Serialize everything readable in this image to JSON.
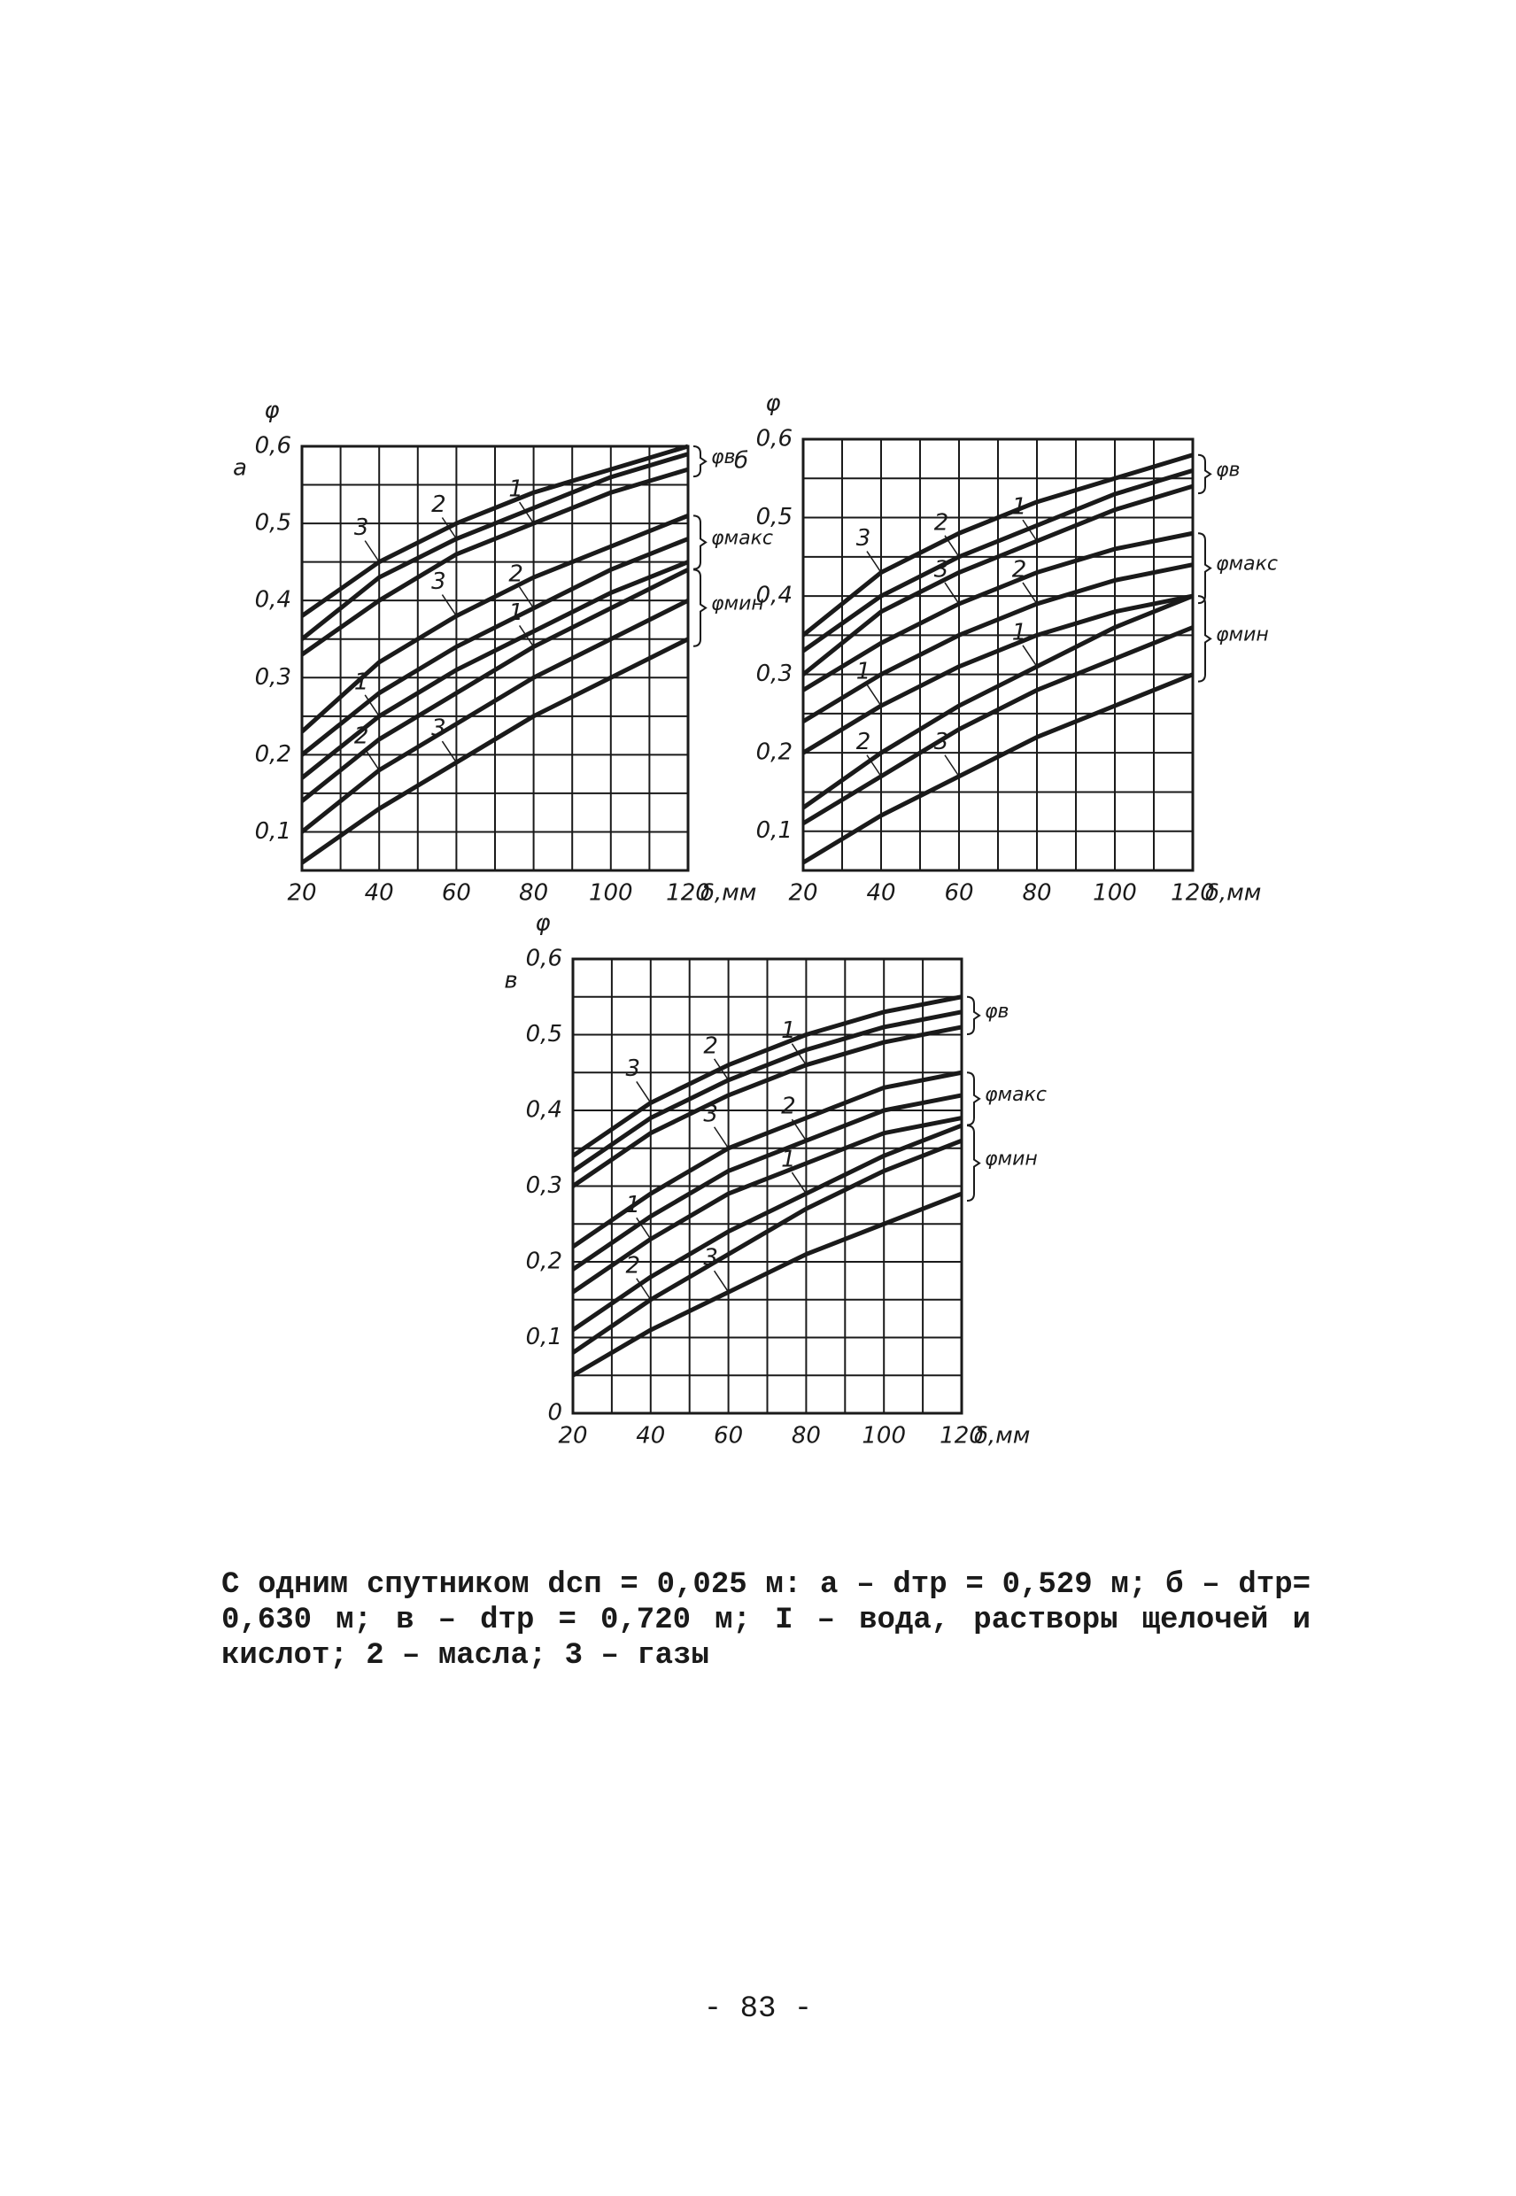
{
  "chart_data": [
    {
      "type": "line",
      "panel": "а",
      "ylabel": "φ",
      "xlabel": "δ,мм",
      "color": "#1a1a1a",
      "grid": true,
      "x": [
        20,
        40,
        60,
        80,
        100,
        120
      ],
      "xlim": [
        20,
        120
      ],
      "xticks": [
        20,
        40,
        60,
        80,
        100,
        120
      ],
      "ylim": [
        0.05,
        0.6
      ],
      "yticks": [
        {
          "value": 0.1,
          "label": "0,1"
        },
        {
          "value": 0.2,
          "label": "0,2"
        },
        {
          "value": 0.3,
          "label": "0,3"
        },
        {
          "value": 0.4,
          "label": "0,4"
        },
        {
          "value": 0.5,
          "label": "0,5"
        },
        {
          "value": 0.6,
          "label": "0,6"
        }
      ],
      "groups": [
        {
          "name": "φв",
          "series": [
            {
              "name": "3",
              "values": [
                0.38,
                0.45,
                0.5,
                0.54,
                0.57,
                0.6
              ]
            },
            {
              "name": "2",
              "values": [
                0.35,
                0.43,
                0.48,
                0.52,
                0.56,
                0.59
              ]
            },
            {
              "name": "1",
              "values": [
                0.33,
                0.4,
                0.46,
                0.5,
                0.54,
                0.57
              ]
            }
          ]
        },
        {
          "name": "φмакс",
          "series": [
            {
              "name": "3",
              "values": [
                0.23,
                0.32,
                0.38,
                0.43,
                0.47,
                0.51
              ]
            },
            {
              "name": "2",
              "values": [
                0.2,
                0.28,
                0.34,
                0.39,
                0.44,
                0.48
              ]
            },
            {
              "name": "1",
              "values": [
                0.17,
                0.25,
                0.31,
                0.36,
                0.41,
                0.45
              ]
            }
          ]
        },
        {
          "name": "φмин",
          "series": [
            {
              "name": "1",
              "values": [
                0.14,
                0.22,
                0.28,
                0.34,
                0.39,
                0.44
              ]
            },
            {
              "name": "2",
              "values": [
                0.1,
                0.18,
                0.24,
                0.3,
                0.35,
                0.4
              ]
            },
            {
              "name": "3",
              "values": [
                0.06,
                0.13,
                0.19,
                0.25,
                0.3,
                0.35
              ]
            }
          ]
        }
      ]
    },
    {
      "type": "line",
      "panel": "б",
      "ylabel": "φ",
      "xlabel": "δ,мм",
      "color": "#1a1a1a",
      "grid": true,
      "x": [
        20,
        40,
        60,
        80,
        100,
        120
      ],
      "xlim": [
        20,
        120
      ],
      "xticks": [
        20,
        40,
        60,
        80,
        100,
        120
      ],
      "ylim": [
        0.05,
        0.6
      ],
      "yticks": [
        {
          "value": 0.1,
          "label": "0,1"
        },
        {
          "value": 0.2,
          "label": "0,2"
        },
        {
          "value": 0.3,
          "label": "0,3"
        },
        {
          "value": 0.4,
          "label": "0,4"
        },
        {
          "value": 0.5,
          "label": "0,5"
        },
        {
          "value": 0.6,
          "label": "0,6"
        }
      ],
      "groups": [
        {
          "name": "φв",
          "series": [
            {
              "name": "3",
              "values": [
                0.35,
                0.43,
                0.48,
                0.52,
                0.55,
                0.58
              ]
            },
            {
              "name": "2",
              "values": [
                0.33,
                0.4,
                0.45,
                0.49,
                0.53,
                0.56
              ]
            },
            {
              "name": "1",
              "values": [
                0.3,
                0.38,
                0.43,
                0.47,
                0.51,
                0.54
              ]
            }
          ]
        },
        {
          "name": "φмакс",
          "series": [
            {
              "name": "3",
              "values": [
                0.28,
                0.34,
                0.39,
                0.43,
                0.46,
                0.48
              ]
            },
            {
              "name": "2",
              "values": [
                0.24,
                0.3,
                0.35,
                0.39,
                0.42,
                0.44
              ]
            },
            {
              "name": "1",
              "values": [
                0.2,
                0.26,
                0.31,
                0.35,
                0.38,
                0.4
              ]
            }
          ]
        },
        {
          "name": "φмин",
          "series": [
            {
              "name": "1",
              "values": [
                0.13,
                0.2,
                0.26,
                0.31,
                0.36,
                0.4
              ]
            },
            {
              "name": "2",
              "values": [
                0.11,
                0.17,
                0.23,
                0.28,
                0.32,
                0.36
              ]
            },
            {
              "name": "3",
              "values": [
                0.06,
                0.12,
                0.17,
                0.22,
                0.26,
                0.3
              ]
            }
          ]
        }
      ]
    },
    {
      "type": "line",
      "panel": "в",
      "ylabel": "φ",
      "xlabel": "δ,мм",
      "color": "#1a1a1a",
      "grid": true,
      "x": [
        20,
        40,
        60,
        80,
        100,
        120
      ],
      "xlim": [
        20,
        120
      ],
      "xticks": [
        20,
        40,
        60,
        80,
        100,
        120
      ],
      "ylim": [
        0,
        0.6
      ],
      "yticks": [
        0,
        {
          "value": 0.1,
          "label": "0,1"
        },
        {
          "value": 0.2,
          "label": "0,2"
        },
        {
          "value": 0.3,
          "label": "0,3"
        },
        {
          "value": 0.4,
          "label": "0,4"
        },
        {
          "value": 0.5,
          "label": "0,5"
        },
        {
          "value": 0.6,
          "label": "0,6"
        }
      ],
      "groups": [
        {
          "name": "φв",
          "series": [
            {
              "name": "3",
              "values": [
                0.34,
                0.41,
                0.46,
                0.5,
                0.53,
                0.55
              ]
            },
            {
              "name": "2",
              "values": [
                0.32,
                0.39,
                0.44,
                0.48,
                0.51,
                0.53
              ]
            },
            {
              "name": "1",
              "values": [
                0.3,
                0.37,
                0.42,
                0.46,
                0.49,
                0.51
              ]
            }
          ]
        },
        {
          "name": "φмакс",
          "series": [
            {
              "name": "3",
              "values": [
                0.22,
                0.29,
                0.35,
                0.39,
                0.43,
                0.45
              ]
            },
            {
              "name": "2",
              "values": [
                0.19,
                0.26,
                0.32,
                0.36,
                0.4,
                0.42
              ]
            },
            {
              "name": "1",
              "values": [
                0.16,
                0.23,
                0.29,
                0.33,
                0.37,
                0.39
              ]
            }
          ]
        },
        {
          "name": "φмин",
          "series": [
            {
              "name": "1",
              "values": [
                0.11,
                0.18,
                0.24,
                0.29,
                0.34,
                0.38
              ]
            },
            {
              "name": "2",
              "values": [
                0.08,
                0.15,
                0.21,
                0.27,
                0.32,
                0.36
              ]
            },
            {
              "name": "3",
              "values": [
                0.05,
                0.11,
                0.16,
                0.21,
                0.25,
                0.29
              ]
            }
          ]
        }
      ]
    }
  ],
  "caption": "С одним спутником dсп = 0,025 м: а – dтр = 0,529 м; б – dтр= 0,630 м; в – dтр = 0,720 м; I – вода, растворы щелочей и кислот; 2 – масла; 3 – газы",
  "page_number": "- 83 -"
}
